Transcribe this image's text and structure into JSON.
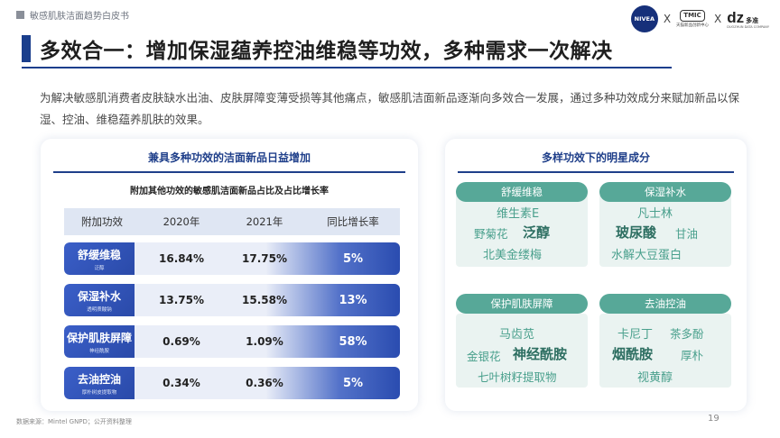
{
  "header": {
    "doc_title": "敏感肌肤洁面趋势白皮书",
    "logos": {
      "nivea": "NIVEA",
      "x1": "X",
      "tmic": "TMIC",
      "tmic_sub": "天猫新品创新中心",
      "x2": "X",
      "dz": "dz",
      "dz_small": "多准",
      "dz_sub": "DUOZHUN DATA COMPANY"
    }
  },
  "title": "多效合一：增加保湿蕴养控油维稳等功效，多种需求一次解决",
  "intro": "为解决敏感肌消费者皮肤缺水出油、皮肤屏障变薄受损等其他痛点，敏感肌洁面新品逐渐向多效合一发展，通过多种功效成分来赋加新品以保湿、控油、维稳蕴养肌肤的效果。",
  "left_panel": {
    "title": "兼具多种功效的洁面新品日益增加",
    "table_title": "附加其他功效的敏感肌洁面新品占比及占比增长率",
    "headers": [
      "附加功效",
      "2020年",
      "2021年",
      "同比增长率"
    ],
    "rows": [
      {
        "label": "舒缓维稳",
        "sub": "泛醇",
        "y2020": "16.84%",
        "y2021": "17.75%",
        "growth": "5%"
      },
      {
        "label": "保湿补水",
        "sub": "透明质酸钠",
        "y2020": "13.75%",
        "y2021": "15.58%",
        "growth": "13%"
      },
      {
        "label": "保护肌肤屏障",
        "sub": "神经酰胺",
        "y2020": "0.69%",
        "y2021": "1.09%",
        "growth": "58%"
      },
      {
        "label": "去油控油",
        "sub": "厚朴树皮提取物",
        "y2020": "0.34%",
        "y2021": "0.36%",
        "growth": "5%"
      }
    ]
  },
  "right_panel": {
    "title": "多样功效下的明星成分",
    "groups": [
      {
        "head": "舒缓维稳",
        "items": [
          "维生素E",
          "野菊花",
          "泛醇",
          "北美金缕梅"
        ]
      },
      {
        "head": "保湿补水",
        "items": [
          "凡士林",
          "玻尿酸",
          "甘油",
          "水解大豆蛋白"
        ]
      },
      {
        "head": "保护肌肤屏障",
        "items": [
          "马齿苋",
          "金银花",
          "神经酰胺",
          "七叶树籽提取物"
        ]
      },
      {
        "head": "去油控油",
        "items": [
          "卡尼丁",
          "茶多酚",
          "烟酰胺",
          "厚朴",
          "视黄醇"
        ]
      }
    ]
  },
  "footer": {
    "source": "数据来源：Mintel GNPD；公开资料整理",
    "page": "19"
  },
  "colors": {
    "accent": "#1a3e8c",
    "row_blue": "#2a4aa9",
    "teal": "#57a898",
    "teal_bg": "#eaf3f1"
  }
}
